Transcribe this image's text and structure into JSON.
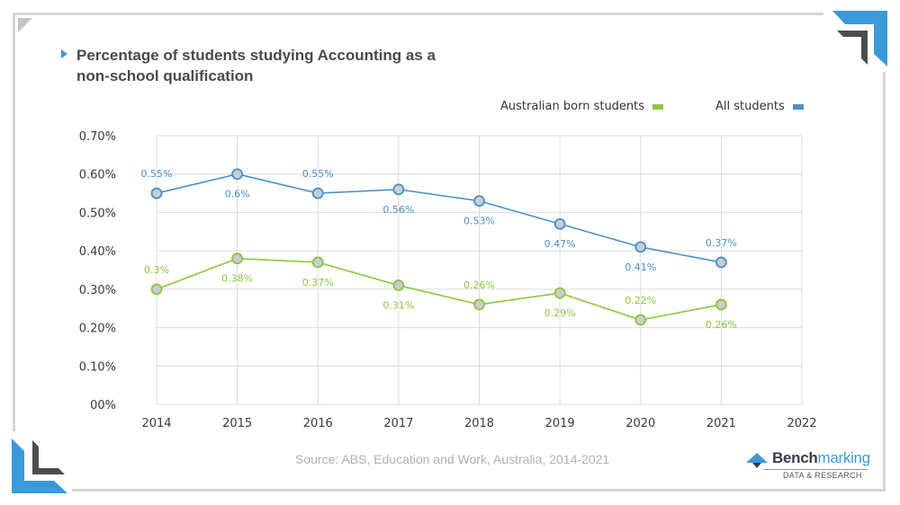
{
  "title": "Percentage of students studying Accounting as a non-school qualification",
  "source": "Source: ABS, Education and Work, Australia, 2014-2021",
  "brand": {
    "name_bold": "Bench",
    "name_light": "marking",
    "subtitle": "DATA & RESEARCH"
  },
  "colors": {
    "all_students": "#4a90c8",
    "australian_born": "#8dc63f",
    "marker_fill": "#c9cdd1",
    "accent_blue": "#3b9ad9",
    "dark_gray": "#4d4d4f"
  },
  "chart_data": {
    "type": "line",
    "title": "Percentage of students studying Accounting as a non-school qualification",
    "xlabel": "",
    "ylabel": "",
    "x": [
      2014,
      2015,
      2016,
      2017,
      2018,
      2019,
      2020,
      2021
    ],
    "x_ticks": [
      "2014",
      "2015",
      "2016",
      "2017",
      "2018",
      "2019",
      "2020",
      "2021",
      "2022"
    ],
    "xlim": [
      2014,
      2022
    ],
    "y_ticks": [
      "00%",
      "0.10%",
      "0.20%",
      "0.30%",
      "0.40%",
      "0.50%",
      "0.60%",
      "0.70%"
    ],
    "y_tick_values": [
      0,
      0.1,
      0.2,
      0.3,
      0.4,
      0.5,
      0.6,
      0.7
    ],
    "ylim": [
      0,
      0.7
    ],
    "grid": true,
    "legend_position": "top-right",
    "series": [
      {
        "name": "Australian born students",
        "color": "#8dc63f",
        "values": [
          0.3,
          0.38,
          0.37,
          0.31,
          0.26,
          0.29,
          0.22,
          0.26
        ],
        "labels": [
          "0.3%",
          "0.38%",
          "0.37%",
          "0.31%",
          "0.26%",
          "0.29%",
          "0.22%",
          "0.26%"
        ],
        "label_positions": [
          "above",
          "below",
          "below",
          "below",
          "above",
          "below",
          "above",
          "below"
        ]
      },
      {
        "name": "All students",
        "color": "#4a90c8",
        "values": [
          0.55,
          0.6,
          0.55,
          0.56,
          0.53,
          0.47,
          0.41,
          0.37
        ],
        "labels": [
          "0.55%",
          "0.6%",
          "0.55%",
          "0.56%",
          "0.53%",
          "0.47%",
          "0.41%",
          "0.37%"
        ],
        "label_positions": [
          "above",
          "below",
          "above",
          "below",
          "below",
          "below",
          "below",
          "above"
        ]
      }
    ]
  }
}
